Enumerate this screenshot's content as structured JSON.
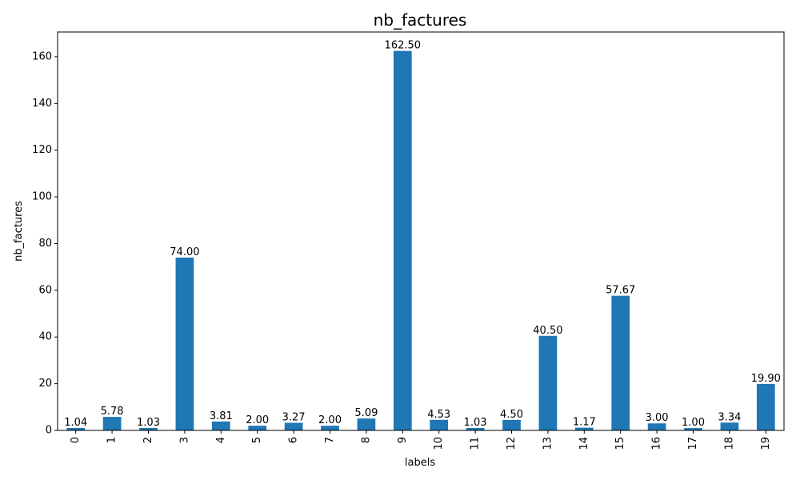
{
  "chart_data": {
    "type": "bar",
    "title": "nb_factures",
    "xlabel": "labels",
    "ylabel": "nb_factures",
    "categories": [
      "0",
      "1",
      "2",
      "3",
      "4",
      "5",
      "6",
      "7",
      "8",
      "9",
      "10",
      "11",
      "12",
      "13",
      "14",
      "15",
      "16",
      "17",
      "18",
      "19"
    ],
    "values": [
      1.04,
      5.78,
      1.03,
      74.0,
      3.81,
      2.0,
      3.27,
      2.0,
      5.09,
      162.5,
      4.53,
      1.03,
      4.5,
      40.5,
      1.17,
      57.67,
      3.0,
      1.0,
      3.34,
      19.9
    ],
    "value_labels": [
      "1.04",
      "5.78",
      "1.03",
      "74.00",
      "3.81",
      "2.00",
      "3.27",
      "2.00",
      "5.09",
      "162.50",
      "4.53",
      "1.03",
      "4.50",
      "40.50",
      "1.17",
      "57.67",
      "3.00",
      "1.00",
      "3.34",
      "19.90"
    ],
    "yticks": [
      0,
      20,
      40,
      60,
      80,
      100,
      120,
      140,
      160
    ],
    "ylim": [
      0,
      170.6
    ],
    "bar_color": "#1f77b4",
    "grid": false,
    "legend": false
  }
}
